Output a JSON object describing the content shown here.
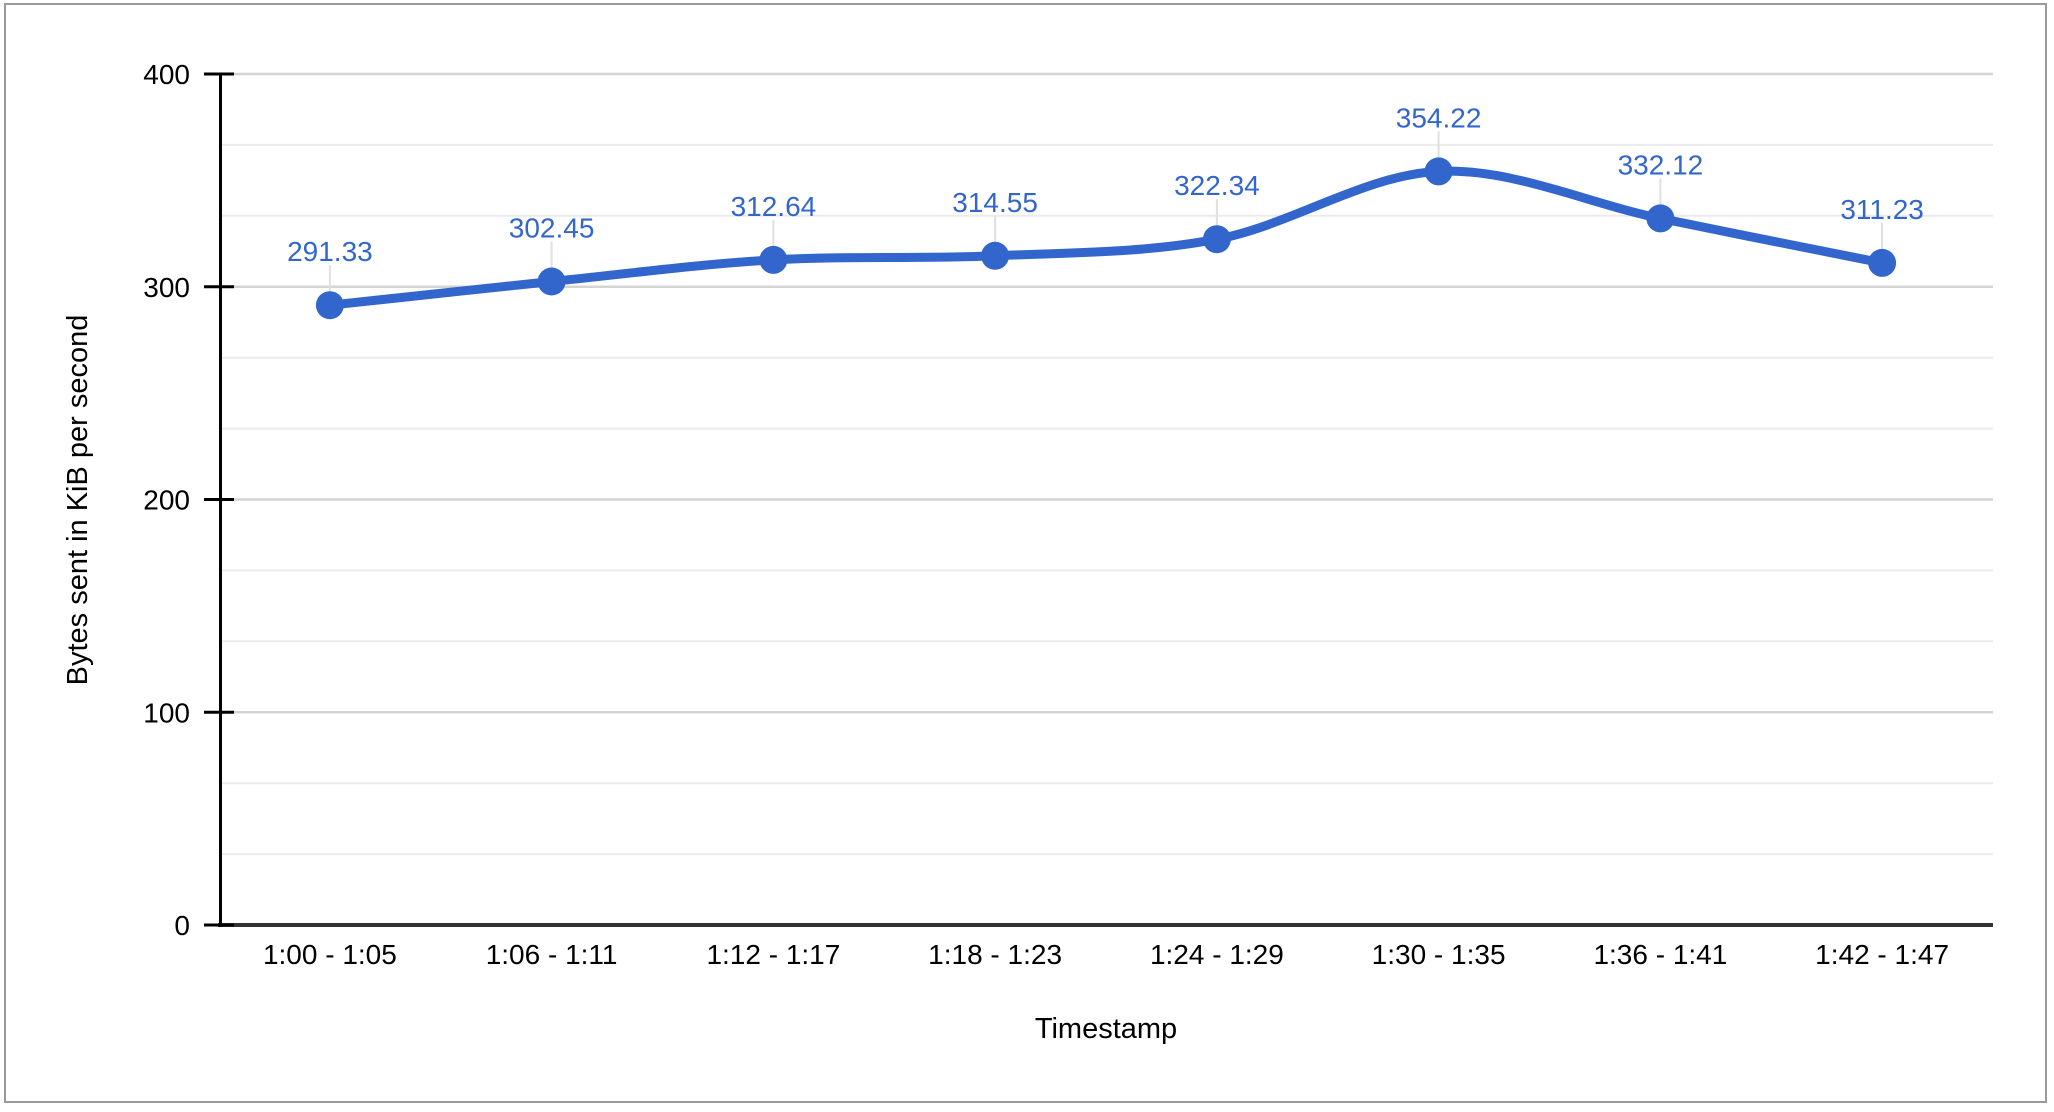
{
  "chart_data": {
    "type": "line",
    "title": "",
    "xlabel": "Timestamp",
    "ylabel": "Bytes sent in KiB per second",
    "categories": [
      "1:00 - 1:05",
      "1:06 - 1:11",
      "1:12 - 1:17",
      "1:18 - 1:23",
      "1:24 - 1:29",
      "1:30 - 1:35",
      "1:36 - 1:41",
      "1:42 - 1:47"
    ],
    "values": [
      291.33,
      302.45,
      312.64,
      314.55,
      322.34,
      354.22,
      332.12,
      311.23
    ],
    "value_labels": [
      "291.33",
      "302.45",
      "312.64",
      "314.55",
      "322.34",
      "354.22",
      "332.12",
      "311.23"
    ],
    "ylim": [
      0,
      400
    ],
    "yticks": [
      0,
      100,
      200,
      300,
      400
    ],
    "minor_gridlines_between_major": 2,
    "grid": "horizontal",
    "smooth_line": true,
    "point_markers": true,
    "legend": "none",
    "colors": {
      "series": "#3366cc",
      "data_label_text": "#3366cc",
      "axis_text": "#000000",
      "axis_line": "#000000",
      "baseline": "#333333",
      "major_gridline": "#d4d4d4",
      "minor_gridline": "#ebebeb",
      "label_whisker": "#e0e0e0",
      "background": "#ffffff",
      "frame_border": "#9a9a9a"
    }
  }
}
